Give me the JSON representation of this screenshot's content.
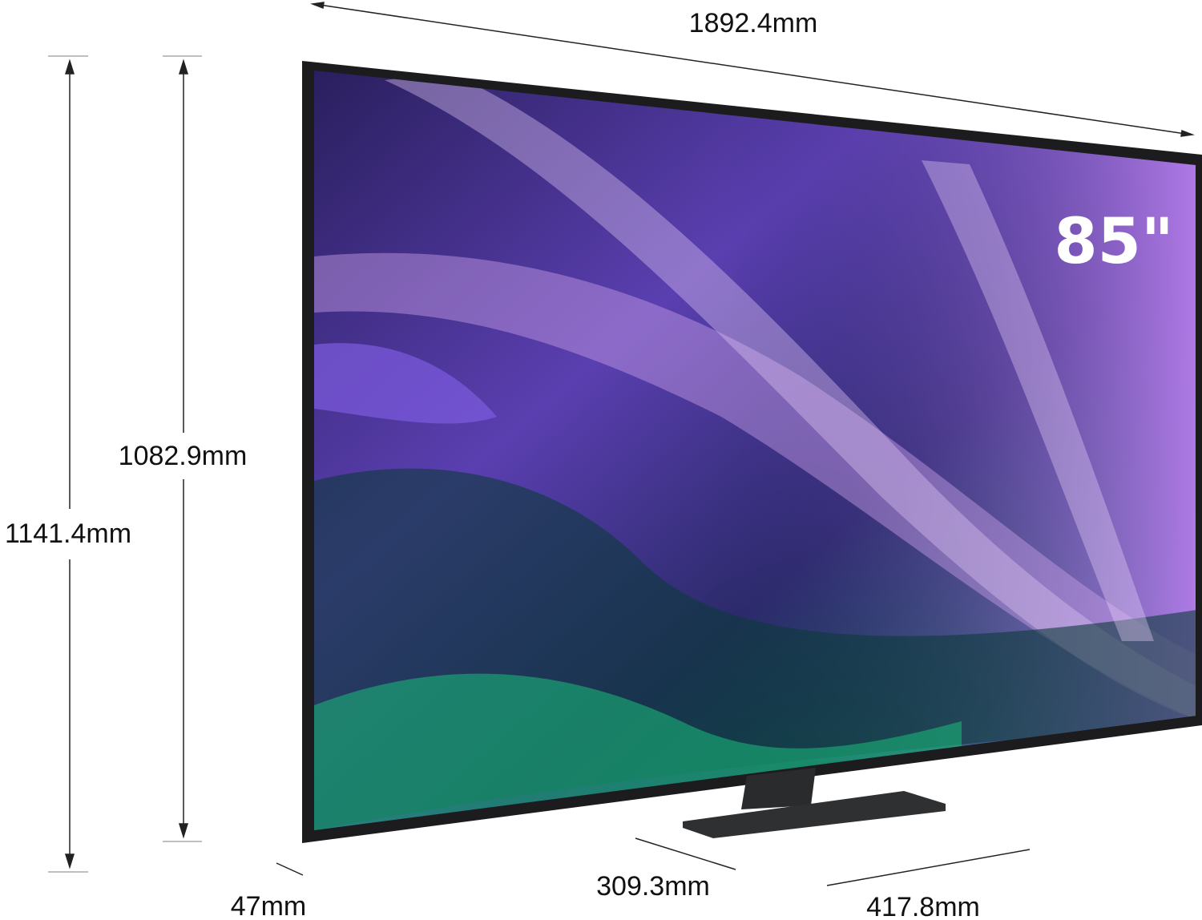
{
  "product": {
    "screen_size_badge": "85\"",
    "dimensions": {
      "width": "1892.4mm",
      "panel_height": "1082.9mm",
      "total_height": "1141.4mm",
      "panel_depth": "47mm",
      "stand_depth": "309.3mm",
      "stand_width": "417.8mm"
    }
  },
  "colors": {
    "frame": "#1c1c1e",
    "stand": "#2e2f31",
    "screen_purple": "#7b4fd0",
    "screen_green": "#12a86b"
  }
}
